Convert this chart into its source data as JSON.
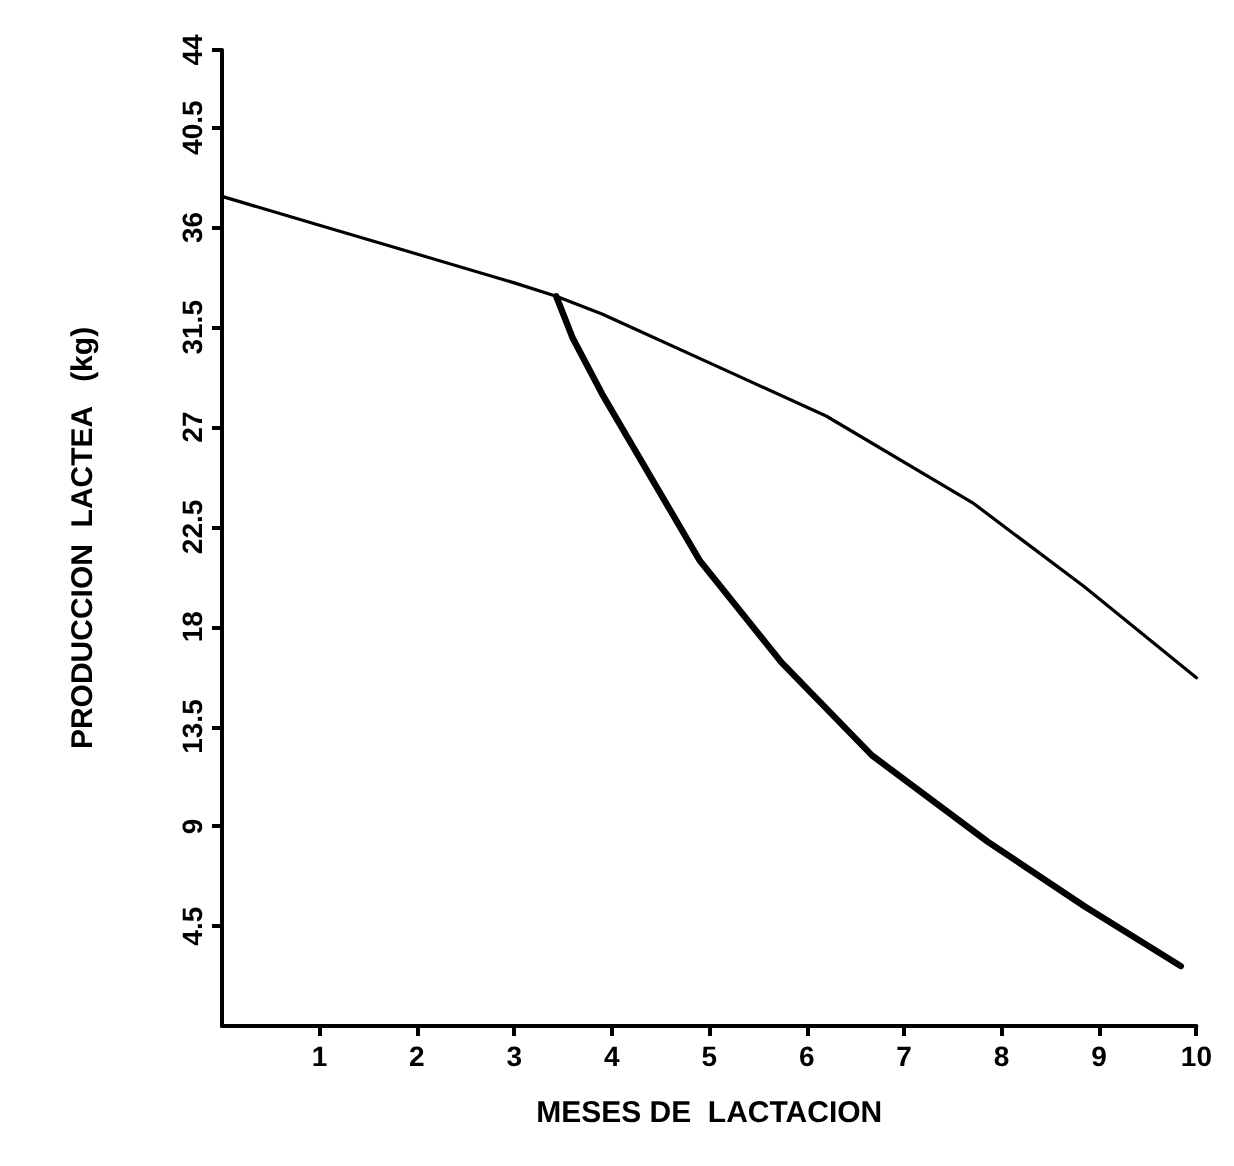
{
  "chart_data": {
    "type": "line",
    "xlabel": "MESES DE  LACTACION",
    "ylabel": "PRODUCCION  LACTEA   (kg)",
    "xlim": [
      0,
      10
    ],
    "xticks": [
      1,
      2,
      3,
      4,
      5,
      6,
      7,
      8,
      9,
      10
    ],
    "ylim": [
      0,
      44
    ],
    "yticks": [
      4.5,
      9,
      13.5,
      18,
      22.5,
      27,
      31.5,
      36,
      40.5,
      44
    ],
    "marker": "none",
    "line_style": "solid",
    "series": [
      {
        "color": "#000000",
        "x": [
          0,
          1,
          2,
          3,
          3.43,
          3.9,
          5.2,
          6.2,
          7.7,
          8.85,
          10
        ],
        "values": [
          37.4,
          36.1,
          34.8,
          33.5,
          32.9,
          32.1,
          29.5,
          27.5,
          23.6,
          19.8,
          15.7
        ]
      },
      {
        "color": "#000000",
        "x": [
          3.43,
          3.6,
          3.9,
          4.9,
          5.74,
          6.67,
          7.86,
          8.85,
          9.84
        ],
        "values": [
          32.9,
          31,
          28.5,
          21,
          16.4,
          12.2,
          8.3,
          5.4,
          2.7
        ]
      }
    ]
  }
}
